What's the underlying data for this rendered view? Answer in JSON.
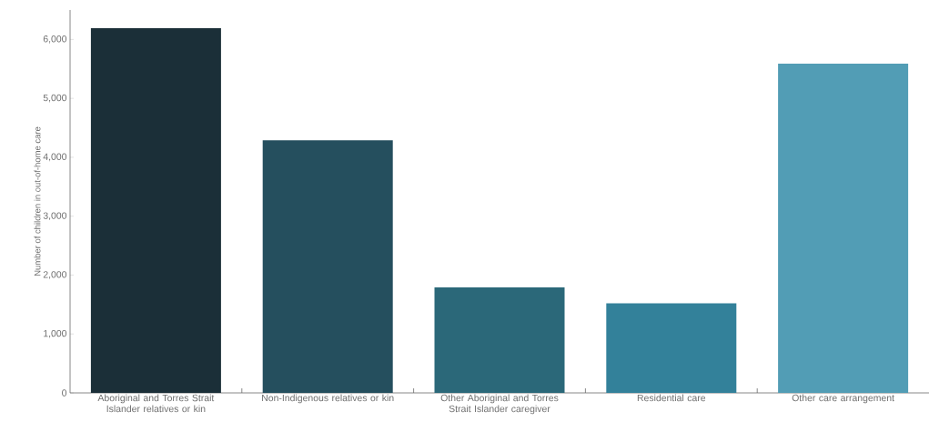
{
  "chart_data": {
    "type": "bar",
    "ylabel": "Number of children in out-of-home care",
    "categories": [
      "Aboriginal and Torres Strait Islander relatives or kin",
      "Non-Indigenous relatives or kin",
      "Other Aboriginal and Torres Strait Islander caregiver",
      "Residential care",
      "Other care arrangement"
    ],
    "values": [
      6190,
      4290,
      1790,
      1520,
      5590
    ],
    "colors": [
      "#1b2f38",
      "#254f5e",
      "#2b6879",
      "#33819a",
      "#529db5"
    ],
    "ylim": [
      0,
      6500
    ],
    "yticks": [
      {
        "value": 0,
        "label": "0"
      },
      {
        "value": 1000,
        "label": "1,000"
      },
      {
        "value": 2000,
        "label": "2,000"
      },
      {
        "value": 3000,
        "label": "3,000"
      },
      {
        "value": 4000,
        "label": "4,000"
      },
      {
        "value": 5000,
        "label": "5,000"
      },
      {
        "value": 6000,
        "label": "6,000"
      }
    ],
    "grid": false
  }
}
